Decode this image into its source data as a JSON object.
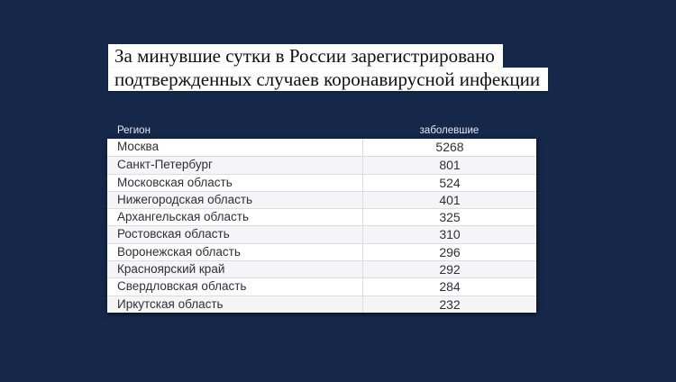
{
  "page": {
    "background_color": "#16284a",
    "accent_colors": {
      "title_box": "#ffffff",
      "title_text": "#101014",
      "header_text": "#e3e8f0",
      "row_alt": "#f5f5f8",
      "row_text": "#303036",
      "divider": "#dcdce1"
    }
  },
  "title": {
    "line1": "За минувшие сутки в России зарегистрировано",
    "line2": "подтвержденных случаев коронавирусной инфекции"
  },
  "chart_data": {
    "type": "table",
    "title": "За минувшие сутки в России зарегистрировано подтвержденных случаев коронавирусной инфекции",
    "columns": [
      "Регион",
      "заболевшие"
    ],
    "rows": [
      {
        "region": "Москва",
        "cases": "5268"
      },
      {
        "region": "Санкт-Петербург",
        "cases": "801"
      },
      {
        "region": "Московская область",
        "cases": "524"
      },
      {
        "region": "Нижегородская область",
        "cases": "401"
      },
      {
        "region": "Архангельская область",
        "cases": "325"
      },
      {
        "region": "Ростовская область",
        "cases": "310"
      },
      {
        "region": "Воронежская область",
        "cases": "296"
      },
      {
        "region": "Красноярский край",
        "cases": "292"
      },
      {
        "region": "Свердловская область",
        "cases": "284"
      },
      {
        "region": "Иркутская область",
        "cases": "232"
      }
    ],
    "layout": {
      "stripes": "alternating white / light-gray",
      "value_alignment": "center",
      "header_on_dark_background": true
    }
  },
  "table_headers": {
    "region": "Регион",
    "cases": "заболевшие"
  }
}
